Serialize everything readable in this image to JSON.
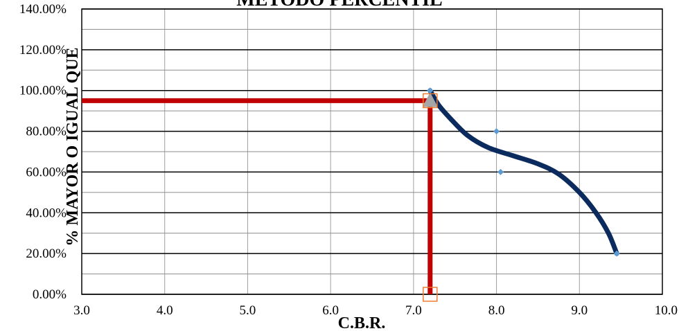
{
  "chart_data": {
    "type": "scatter",
    "title": "MÉTODO PERCENTIL",
    "xlabel": "C.B.R.",
    "ylabel": "% MAYOR O IGUAL QUE",
    "xlim": [
      3.0,
      10.0
    ],
    "ylim": [
      0,
      140
    ],
    "x_ticks": [
      3.0,
      4.0,
      5.0,
      6.0,
      7.0,
      8.0,
      9.0,
      10.0
    ],
    "y_ticks": [
      0,
      20,
      40,
      60,
      80,
      100,
      120,
      140
    ],
    "x_tick_labels": [
      "3.0",
      "4.0",
      "5.0",
      "6.0",
      "7.0",
      "8.0",
      "9.0",
      "10.0"
    ],
    "y_tick_labels": [
      "0.00%",
      "20.00%",
      "40.00%",
      "60.00%",
      "80.00%",
      "100.00%",
      "120.00%",
      "140.00%"
    ],
    "grid": true,
    "legend": "none",
    "series": [
      {
        "kind": "scatter",
        "color": "#5b9bd5",
        "points": [
          [
            7.2,
            100
          ],
          [
            8.0,
            80
          ],
          [
            8.05,
            60
          ],
          [
            9.45,
            20
          ]
        ]
      },
      {
        "kind": "trendline",
        "color": "#0b2a5e",
        "points": [
          [
            7.2,
            100
          ],
          [
            7.3,
            93
          ],
          [
            7.45,
            86
          ],
          [
            7.65,
            78
          ],
          [
            7.9,
            72
          ],
          [
            8.2,
            68
          ],
          [
            8.5,
            64
          ],
          [
            8.75,
            59
          ],
          [
            9.0,
            50
          ],
          [
            9.2,
            40
          ],
          [
            9.35,
            30
          ],
          [
            9.45,
            20
          ]
        ]
      }
    ],
    "reference_lines": {
      "color": "#c00000",
      "x": 7.2,
      "y": 95
    },
    "markers": [
      {
        "shape": "triangle",
        "color": "#a6a6a6",
        "x": 7.2,
        "y": 95
      },
      {
        "shape": "square-open",
        "color": "#ed7d31",
        "x": 7.2,
        "y": 95
      },
      {
        "shape": "square-open",
        "color": "#ed7d31",
        "x": 7.2,
        "y": 0
      }
    ]
  }
}
